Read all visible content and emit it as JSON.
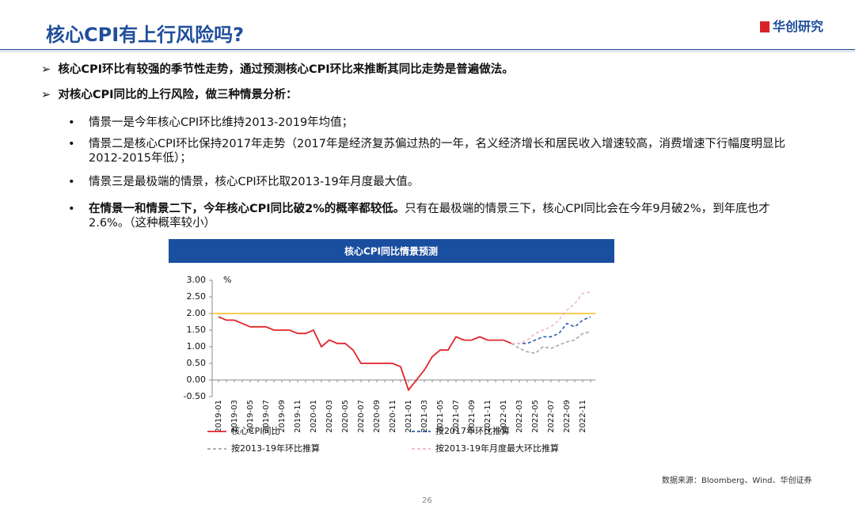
{
  "header": {
    "title": "核心CPI有上行风险吗?",
    "logo": "华创研究"
  },
  "sections": [
    {
      "text": "核心CPI环比有较强的季节性走势，通过预测核心CPI环比来推断其同比走势是普遍做法。"
    },
    {
      "text": "对核心CPI同比的上行风险，做三种情景分析：",
      "items": [
        [
          "情景一是今年核心CPI环比维持2013-2019年均值；"
        ],
        [
          "情景二是核心CPI环比保持2017年走势（2017年是经济复苏偏过热的一年，名义经济增长和居民收入增速较高，消费增速下行幅度明显比2012-2015年低）；"
        ],
        [
          "情景三是最极端的情景，核心CPI环比取2013-19年月度最大值。"
        ],
        [
          "在情景一和情景二下，今年核心CPI同比破2%的概率都较低。",
          "只有在最极端的情景三下，核心CPI同比会在今年9月破2%，到年底也才2.6%。（这种概率较小）"
        ]
      ]
    }
  ],
  "chart_data": {
    "type": "line",
    "title": "核心CPI同比情景预测",
    "y_unit": "%",
    "categories": [
      "2019-01",
      null,
      "2019-03",
      null,
      "2019-05",
      null,
      "2019-07",
      null,
      "2019-09",
      null,
      "2019-11",
      null,
      "2020-01",
      null,
      "2020-03",
      null,
      "2020-05",
      null,
      "2020-07",
      null,
      "2020-09",
      null,
      "2020-11",
      null,
      "2021-01",
      null,
      "2021-03",
      null,
      "2021-05",
      null,
      "2021-07",
      null,
      "2021-09",
      null,
      "2021-11",
      null,
      "2022-01",
      null,
      "2022-03",
      null,
      "2022-05",
      null,
      "2022-07",
      null,
      "2022-09",
      null,
      "2022-11",
      null
    ],
    "ylim": [
      -0.5,
      3.0
    ],
    "yticks": [
      {
        "value": -0.5,
        "label": "-0.50"
      },
      {
        "value": 0,
        "label": "0.00"
      },
      {
        "value": 0.5,
        "label": "0.50"
      },
      {
        "value": 1,
        "label": "1.00"
      },
      {
        "value": 1.5,
        "label": "1.50"
      },
      {
        "value": 2,
        "label": "2.00"
      },
      {
        "value": 2.5,
        "label": "2.50"
      },
      {
        "value": 3,
        "label": "3.00"
      }
    ],
    "reference_lines": [
      {
        "value": 2.0,
        "color": "#f7c43d"
      }
    ],
    "series": [
      {
        "name": "核心CPI同比",
        "color": "#e0242b",
        "dash": false,
        "values": [
          1.9,
          1.8,
          1.8,
          1.7,
          1.6,
          1.6,
          1.6,
          1.5,
          1.5,
          1.5,
          1.4,
          1.4,
          1.5,
          1.0,
          1.2,
          1.1,
          1.1,
          0.9,
          0.5,
          0.5,
          0.5,
          0.5,
          0.5,
          0.4,
          -0.3,
          0.0,
          0.3,
          0.7,
          0.9,
          0.9,
          1.3,
          1.2,
          1.2,
          1.3,
          1.2,
          1.2,
          1.2,
          1.1,
          null,
          null,
          null,
          null,
          null,
          null,
          null,
          null,
          null,
          null
        ]
      },
      {
        "name": "按2017年环比推算",
        "color": "#2a5db0",
        "dash": true,
        "values": [
          null,
          null,
          null,
          null,
          null,
          null,
          null,
          null,
          null,
          null,
          null,
          null,
          null,
          null,
          null,
          null,
          null,
          null,
          null,
          null,
          null,
          null,
          null,
          null,
          null,
          null,
          null,
          null,
          null,
          null,
          null,
          null,
          null,
          null,
          null,
          null,
          null,
          1.1,
          1.1,
          1.1,
          1.2,
          1.3,
          1.3,
          1.4,
          1.7,
          1.6,
          1.8,
          1.9
        ]
      },
      {
        "name": "按2013-19年环比推算",
        "color": "#a6a6a6",
        "dash": true,
        "values": [
          null,
          null,
          null,
          null,
          null,
          null,
          null,
          null,
          null,
          null,
          null,
          null,
          null,
          null,
          null,
          null,
          null,
          null,
          null,
          null,
          null,
          null,
          null,
          null,
          null,
          null,
          null,
          null,
          null,
          null,
          null,
          null,
          null,
          null,
          null,
          null,
          null,
          1.1,
          0.95,
          0.85,
          0.8,
          1.0,
          0.95,
          1.05,
          1.15,
          1.2,
          1.4,
          1.45
        ]
      },
      {
        "name": "按2013-19年月度最大环比推算",
        "color": "#f2b8c0",
        "dash": true,
        "values": [
          null,
          null,
          null,
          null,
          null,
          null,
          null,
          null,
          null,
          null,
          null,
          null,
          null,
          null,
          null,
          null,
          null,
          null,
          null,
          null,
          null,
          null,
          null,
          null,
          null,
          null,
          null,
          null,
          null,
          null,
          null,
          null,
          null,
          null,
          null,
          null,
          null,
          1.1,
          1.1,
          1.2,
          1.4,
          1.5,
          1.6,
          1.8,
          2.1,
          2.3,
          2.6,
          2.65
        ]
      }
    ]
  },
  "source": "数据来源：Bloomberg、Wind、华创证券",
  "page_number": "26"
}
